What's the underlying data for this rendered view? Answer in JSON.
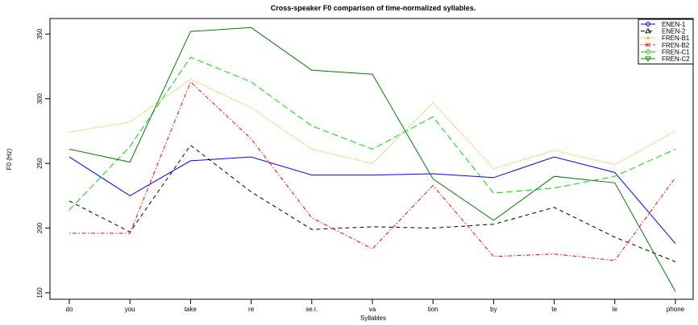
{
  "chart_data": {
    "type": "line",
    "title": "Cross-speaker F0 comparison of time-normalized syllables.",
    "xlabel": "Syllables",
    "ylabel": "F0 (Hz)",
    "ylim": [
      145,
      362
    ],
    "yticks": [
      150,
      200,
      250,
      300,
      350
    ],
    "categories": [
      "do",
      "you",
      "take",
      "re",
      "se.r.",
      "va",
      "tion",
      "by",
      "te",
      "le",
      "phone"
    ],
    "grid": false,
    "legend_position": "top-right",
    "series": [
      {
        "name": "ENEN-1",
        "color": "#0000ff",
        "dash": "solid",
        "marker": "circle",
        "values": [
          255,
          225,
          252,
          255,
          241,
          241,
          242,
          239,
          255,
          243,
          188
        ]
      },
      {
        "name": "ENEN-2",
        "color": "#000000",
        "dash": "dashed",
        "marker": "triangle",
        "values": [
          221,
          197,
          264,
          228,
          199,
          201,
          200,
          203,
          216,
          193,
          174
        ]
      },
      {
        "name": "FREN-B1",
        "color": "#ffa500",
        "dash": "dotted",
        "marker": "plus",
        "values": [
          274,
          282,
          315,
          293,
          261,
          250,
          297,
          246,
          260,
          249,
          275
        ]
      },
      {
        "name": "FREN-B2",
        "color": "#ff0000",
        "dash": "dotdash",
        "marker": "x",
        "values": [
          196,
          196,
          313,
          269,
          208,
          184,
          233,
          178,
          180,
          175,
          239
        ]
      },
      {
        "name": "FREN-C1",
        "color": "#00dd00",
        "dash": "longdash",
        "marker": "diamond",
        "values": [
          214,
          263,
          332,
          313,
          279,
          261,
          286,
          227,
          231,
          240,
          261
        ]
      },
      {
        "name": "FREN-C2",
        "color": "#008000",
        "dash": "solid",
        "marker": "triangle-down",
        "values": [
          261,
          251,
          352,
          355,
          322,
          319,
          238,
          206,
          240,
          235,
          151
        ]
      }
    ]
  }
}
